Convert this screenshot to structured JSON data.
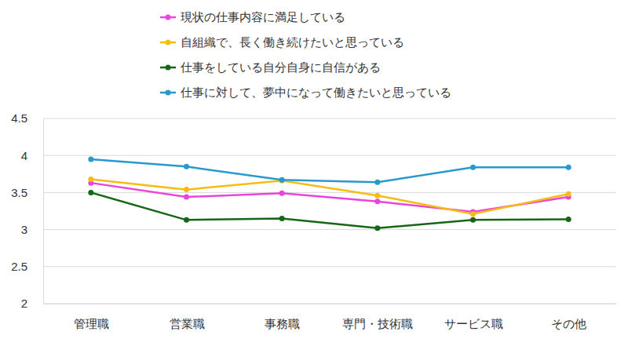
{
  "chart_data": {
    "type": "line",
    "categories": [
      "管理職",
      "営業職",
      "事務職",
      "専門・技術職",
      "サービス職",
      "その他"
    ],
    "series": [
      {
        "name": "現状の仕事内容に満足している",
        "color": "#ea44dc",
        "values": [
          3.63,
          3.44,
          3.49,
          3.38,
          3.24,
          3.44
        ]
      },
      {
        "name": "自組織で、長く働き続けたいと思っている",
        "color": "#f5bd12",
        "values": [
          3.68,
          3.54,
          3.66,
          3.46,
          3.21,
          3.48
        ]
      },
      {
        "name": "仕事をしている自分自身に自信がある",
        "color": "#156615",
        "values": [
          3.5,
          3.13,
          3.15,
          3.02,
          3.13,
          3.14
        ]
      },
      {
        "name": "仕事に対して、夢中になって働きたいと思っている",
        "color": "#2a98cc",
        "values": [
          3.95,
          3.85,
          3.67,
          3.64,
          3.84,
          3.84
        ]
      }
    ],
    "ylim": [
      2,
      4.5
    ],
    "yticks": [
      2,
      2.5,
      3,
      3.5,
      4,
      4.5
    ],
    "grid": true,
    "legend": "top",
    "marker": "circle"
  }
}
